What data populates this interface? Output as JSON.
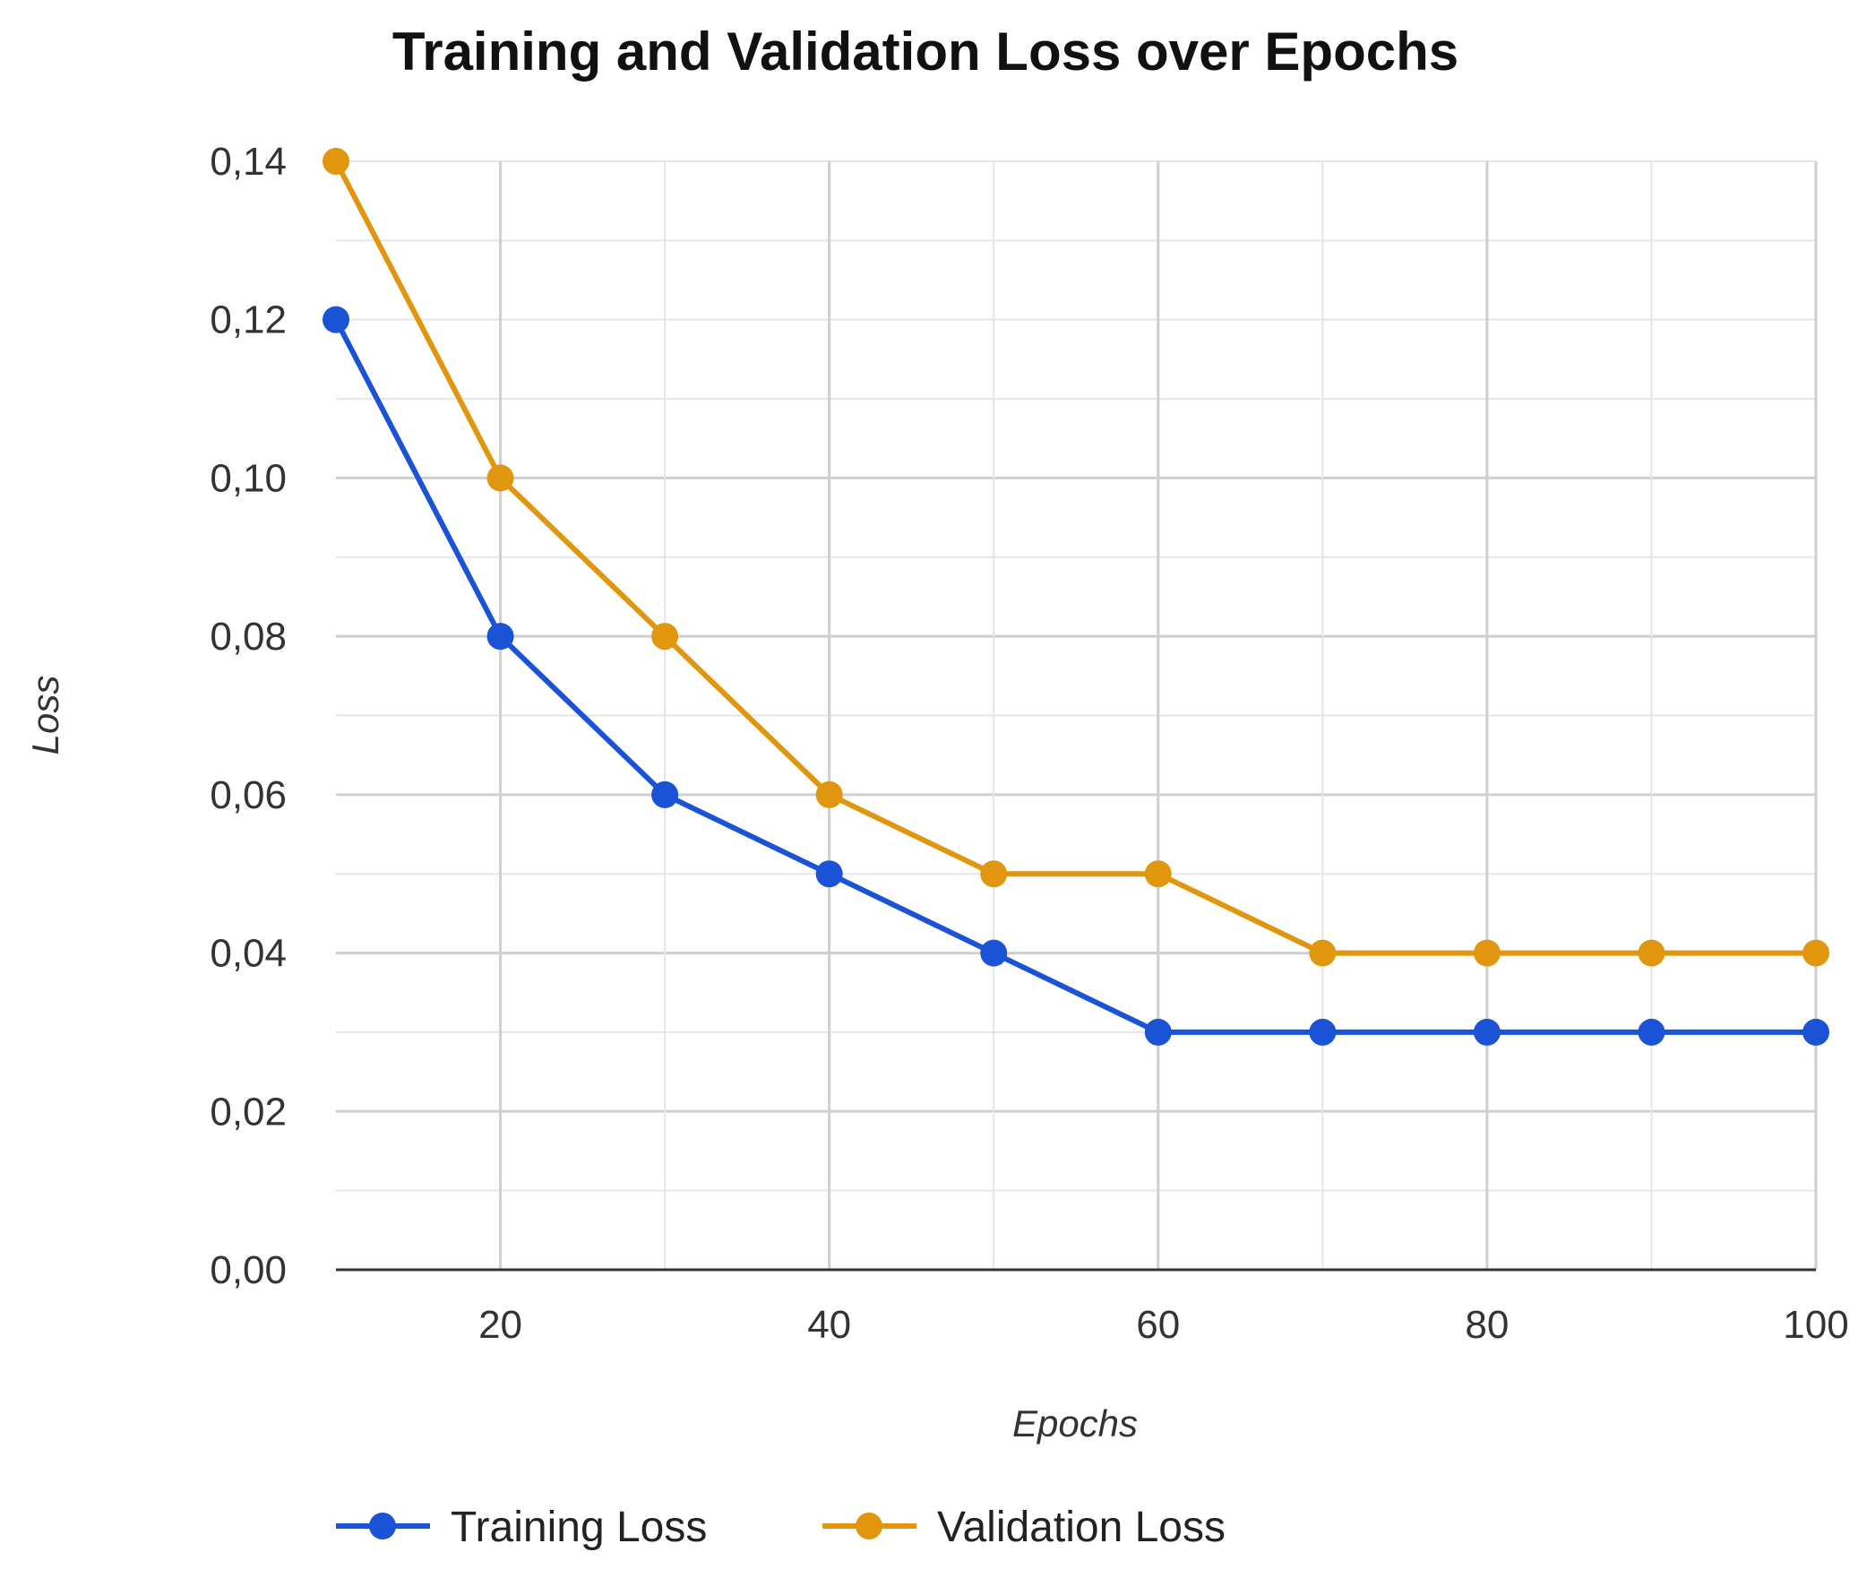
{
  "chart_data": {
    "type": "line",
    "title": "Training and Validation Loss over Epochs",
    "xlabel": "Epochs",
    "ylabel": "Loss",
    "xlim": [
      10,
      100
    ],
    "ylim": [
      0,
      0.14
    ],
    "x_ticks": [
      20,
      40,
      60,
      80,
      100
    ],
    "x_tick_labels": [
      "20",
      "40",
      "60",
      "80",
      "100"
    ],
    "y_ticks": [
      0,
      0.02,
      0.04,
      0.06,
      0.08,
      0.1,
      0.12,
      0.14
    ],
    "y_tick_labels": [
      "0,00",
      "0,02",
      "0,04",
      "0,06",
      "0,08",
      "0,10",
      "0,12",
      "0,14"
    ],
    "grid": true,
    "legend_position": "bottom-left",
    "x": [
      10,
      20,
      30,
      40,
      50,
      60,
      70,
      80,
      90,
      100
    ],
    "series": [
      {
        "name": "Training Loss",
        "color": "#1a53d6",
        "values": [
          0.12,
          0.08,
          0.06,
          0.05,
          0.04,
          0.03,
          0.03,
          0.03,
          0.03,
          0.03
        ]
      },
      {
        "name": "Validation Loss",
        "color": "#e0960e",
        "values": [
          0.14,
          0.1,
          0.08,
          0.06,
          0.05,
          0.05,
          0.04,
          0.04,
          0.04,
          0.04
        ]
      }
    ]
  }
}
